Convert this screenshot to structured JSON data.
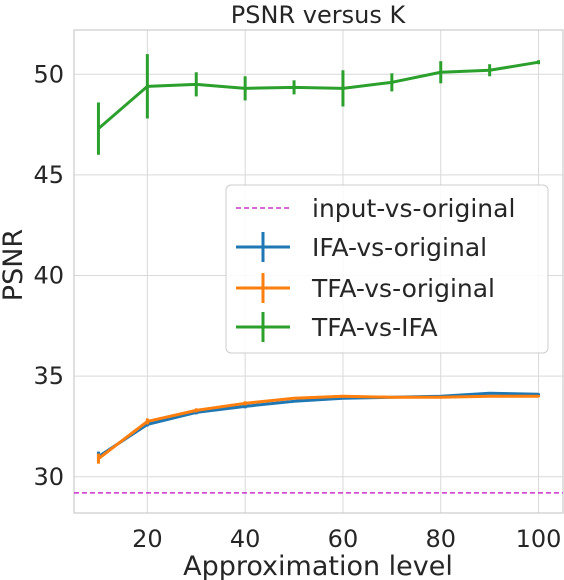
{
  "chart_data": {
    "type": "line",
    "title": "PSNR versus K",
    "xlabel": "Approximation level",
    "ylabel": "PSNR",
    "xlim": [
      5,
      105
    ],
    "ylim": [
      28.2,
      52.2
    ],
    "xticks": [
      20,
      40,
      60,
      80,
      100
    ],
    "yticks": [
      30,
      35,
      40,
      45,
      50
    ],
    "grid": true,
    "legend_position": "center-right",
    "series": [
      {
        "name": "input-vs-original",
        "color": "#cc33cc",
        "style": "dashed",
        "constant": 29.2,
        "x": [],
        "y": [],
        "err": []
      },
      {
        "name": "IFA-vs-original",
        "color": "#1f77b4",
        "style": "solid",
        "x": [
          10,
          20,
          30,
          40,
          50,
          60,
          70,
          80,
          90,
          100
        ],
        "y": [
          31.0,
          32.6,
          33.2,
          33.5,
          33.75,
          33.9,
          33.95,
          34.0,
          34.15,
          34.1
        ],
        "err": [
          0.25,
          0.1,
          0.1,
          0.1,
          0.05,
          0.05,
          0.05,
          0.05,
          0.05,
          0.05
        ]
      },
      {
        "name": "TFA-vs-original",
        "color": "#ff7f0e",
        "style": "solid",
        "x": [
          10,
          20,
          30,
          40,
          50,
          60,
          70,
          80,
          90,
          100
        ],
        "y": [
          30.9,
          32.75,
          33.3,
          33.65,
          33.9,
          34.0,
          33.95,
          33.95,
          34.0,
          34.0
        ],
        "err": [
          0.25,
          0.15,
          0.1,
          0.1,
          0.05,
          0.05,
          0.05,
          0.05,
          0.05,
          0.05
        ]
      },
      {
        "name": "TFA-vs-IFA",
        "color": "#2ca02c",
        "style": "solid",
        "x": [
          10,
          20,
          30,
          40,
          50,
          60,
          70,
          80,
          90,
          100
        ],
        "y": [
          47.3,
          49.4,
          49.5,
          49.3,
          49.35,
          49.3,
          49.6,
          50.1,
          50.2,
          50.6
        ],
        "err": [
          1.3,
          1.6,
          0.6,
          0.6,
          0.35,
          0.9,
          0.45,
          0.55,
          0.3,
          0.1
        ]
      }
    ]
  }
}
